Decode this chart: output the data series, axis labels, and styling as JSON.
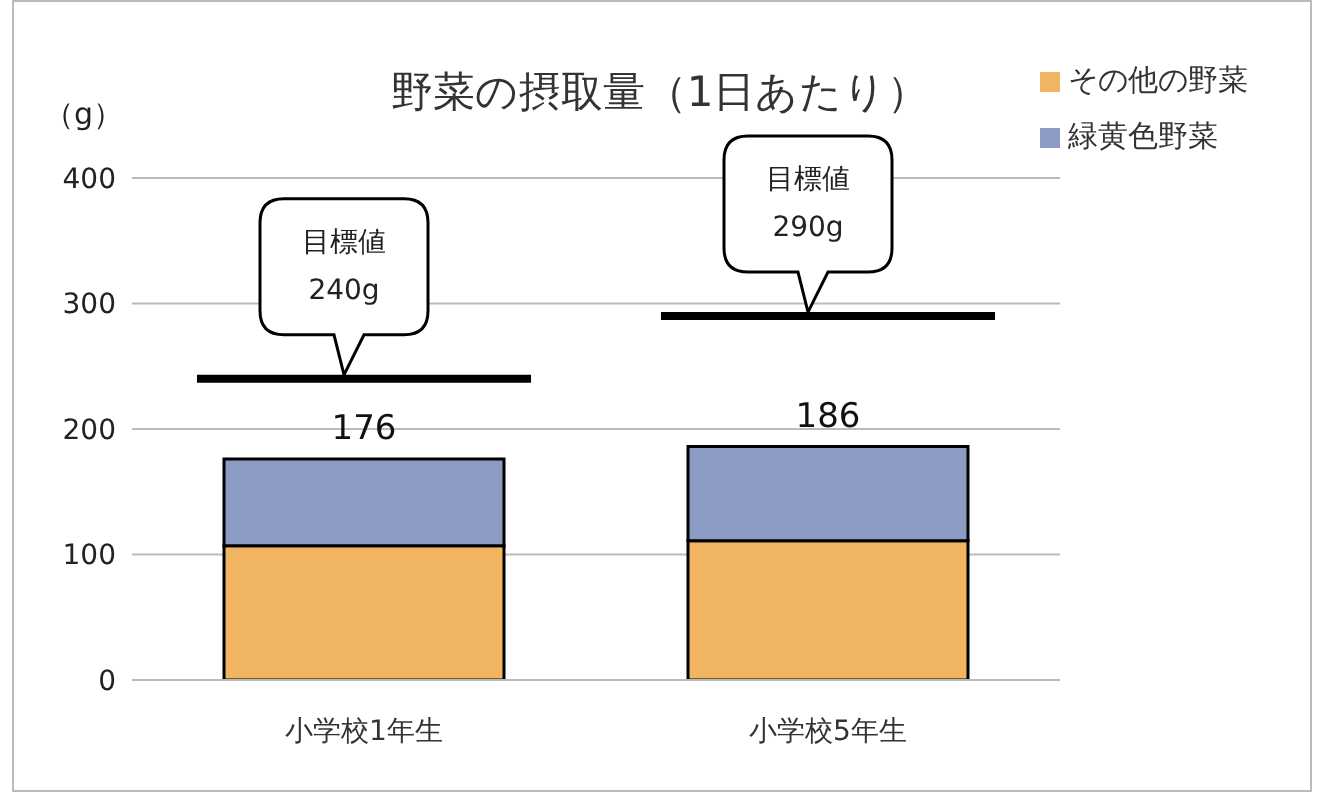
{
  "chart_data": {
    "type": "bar",
    "title": "野菜の摂取量（1日あたり）",
    "ylabel": "（g）",
    "categories": [
      "小学校1年生",
      "小学校5年生"
    ],
    "series": [
      {
        "name": "その他の野菜",
        "color": "#f0b463",
        "values": [
          107,
          111
        ]
      },
      {
        "name": "緑黄色野菜",
        "color": "#8b9bc4",
        "values": [
          69,
          75
        ]
      }
    ],
    "stacked": true,
    "totals": [
      "176",
      "186"
    ],
    "ylim": [
      0,
      400
    ],
    "yticks": [
      0,
      100,
      200,
      300,
      400
    ],
    "grid": "y",
    "legend": "top right",
    "ref_lines": [
      {
        "axis": "y",
        "value": 240,
        "label": "目標値\n240g",
        "color": "#000000"
      },
      {
        "axis": "y",
        "value": 290,
        "label": "目標値\n290g",
        "color": "#000000"
      }
    ]
  }
}
